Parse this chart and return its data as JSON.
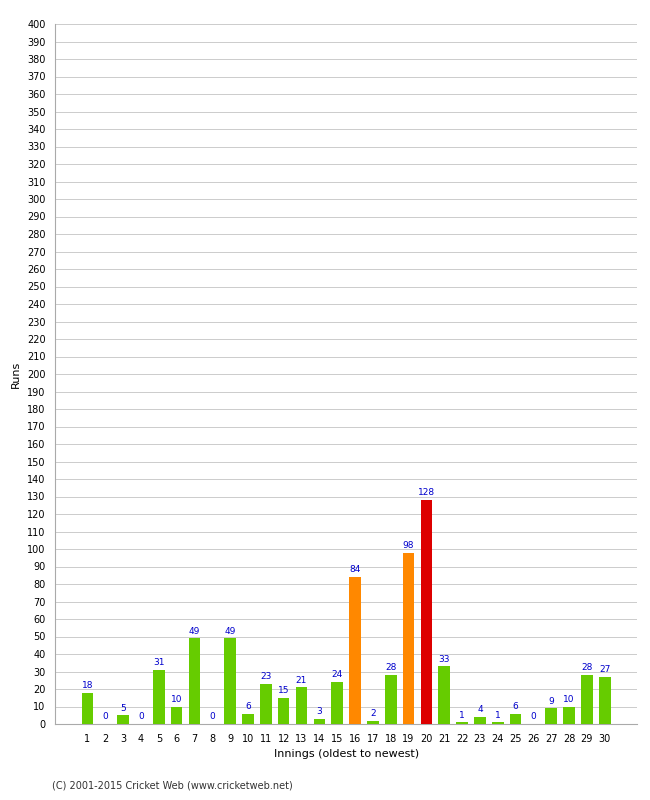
{
  "innings": [
    1,
    2,
    3,
    4,
    5,
    6,
    7,
    8,
    9,
    10,
    11,
    12,
    13,
    14,
    15,
    16,
    17,
    18,
    19,
    20,
    21,
    22,
    23,
    24,
    25,
    26,
    27,
    28,
    29,
    30
  ],
  "values": [
    18,
    0,
    5,
    0,
    31,
    10,
    49,
    0,
    49,
    6,
    23,
    15,
    21,
    3,
    24,
    84,
    2,
    28,
    98,
    128,
    33,
    1,
    4,
    1,
    6,
    0,
    9,
    10,
    28,
    27
  ],
  "colors": [
    "#66cc00",
    "#66cc00",
    "#66cc00",
    "#66cc00",
    "#66cc00",
    "#66cc00",
    "#66cc00",
    "#66cc00",
    "#66cc00",
    "#66cc00",
    "#66cc00",
    "#66cc00",
    "#66cc00",
    "#66cc00",
    "#66cc00",
    "#ff8800",
    "#66cc00",
    "#66cc00",
    "#ff8800",
    "#dd0000",
    "#66cc00",
    "#66cc00",
    "#66cc00",
    "#66cc00",
    "#66cc00",
    "#66cc00",
    "#66cc00",
    "#66cc00",
    "#66cc00",
    "#66cc00"
  ],
  "ylabel": "Runs",
  "xlabel": "Innings (oldest to newest)",
  "ylim": [
    0,
    400
  ],
  "ytick_step": 10,
  "label_color": "#0000cc",
  "label_fontsize": 6.5,
  "footer": "(C) 2001-2015 Cricket Web (www.cricketweb.net)",
  "bg_color": "#ffffff",
  "grid_color": "#cccccc",
  "axis_fontsize": 7,
  "bar_width": 0.65
}
